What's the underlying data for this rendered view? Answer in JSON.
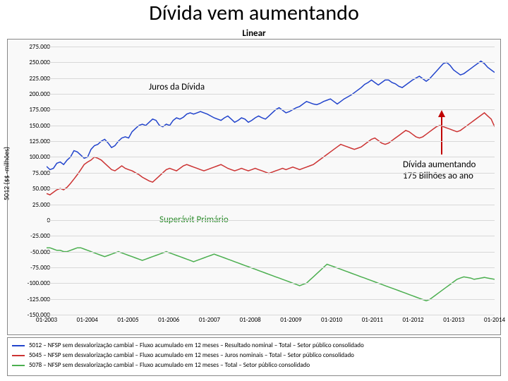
{
  "slide": {
    "title": "Dívida vem aumentando",
    "chart_title": "Linear"
  },
  "chart": {
    "type": "line",
    "background_color": "#f9f9f9",
    "grid_color": "#d8d8d8",
    "ylabel": "5012 ($$ -milhões)",
    "ylim": [
      -150000,
      275000
    ],
    "ytick_step": 25000,
    "yticks": [
      "275.000",
      "250.000",
      "225.000",
      "200.000",
      "175.000",
      "150.000",
      "125.000",
      "100.000",
      "75.000",
      "50.000",
      "25.000",
      "0",
      "-25.000",
      "-50.000",
      "-75.000",
      "-100.000",
      "-125.000",
      "-150.000"
    ],
    "xlabels": [
      "01-2003",
      "01-2004",
      "01-2005",
      "01-2006",
      "01-2007",
      "01-2008",
      "01-2009",
      "01-2010",
      "01-2011",
      "01-2012",
      "01-2013",
      "01-2014"
    ],
    "series": [
      {
        "name": "nominal",
        "color": "#2244cc",
        "width": 1.5,
        "data": [
          85,
          80,
          82,
          90,
          92,
          88,
          95,
          100,
          110,
          108,
          103,
          98,
          100,
          112,
          118,
          120,
          125,
          128,
          122,
          115,
          118,
          125,
          130,
          132,
          130,
          140,
          145,
          150,
          152,
          150,
          155,
          160,
          158,
          150,
          148,
          152,
          150,
          158,
          162,
          160,
          163,
          168,
          170,
          168,
          170,
          172,
          170,
          168,
          165,
          162,
          160,
          158,
          162,
          165,
          160,
          155,
          158,
          162,
          160,
          155,
          158,
          162,
          165,
          162,
          160,
          165,
          170,
          175,
          178,
          174,
          170,
          172,
          175,
          178,
          180,
          184,
          188,
          186,
          184,
          183,
          185,
          188,
          190,
          192,
          188,
          184,
          188,
          192,
          195,
          198,
          202,
          206,
          210,
          215,
          218,
          222,
          218,
          214,
          218,
          222,
          222,
          218,
          216,
          212,
          210,
          214,
          218,
          222,
          225,
          228,
          224,
          220,
          224,
          230,
          236,
          242,
          248,
          250,
          245,
          238,
          234,
          230,
          232,
          236,
          240,
          244,
          248,
          252,
          248,
          242,
          238,
          234
        ]
      },
      {
        "name": "juros",
        "color": "#cc3333",
        "width": 1.5,
        "data": [
          42,
          40,
          44,
          48,
          50,
          48,
          52,
          58,
          65,
          72,
          80,
          88,
          92,
          95,
          100,
          98,
          95,
          90,
          85,
          80,
          78,
          82,
          86,
          82,
          80,
          78,
          75,
          72,
          68,
          65,
          62,
          60,
          65,
          70,
          75,
          80,
          82,
          80,
          78,
          82,
          86,
          88,
          86,
          84,
          82,
          80,
          78,
          80,
          82,
          84,
          86,
          88,
          85,
          82,
          80,
          78,
          80,
          82,
          80,
          78,
          80,
          82,
          80,
          78,
          76,
          74,
          76,
          78,
          80,
          82,
          80,
          82,
          84,
          82,
          80,
          82,
          84,
          86,
          88,
          92,
          96,
          100,
          104,
          108,
          112,
          116,
          120,
          118,
          116,
          114,
          112,
          114,
          116,
          120,
          124,
          128,
          130,
          126,
          122,
          120,
          122,
          126,
          130,
          134,
          138,
          142,
          140,
          136,
          132,
          130,
          132,
          136,
          140,
          144,
          148,
          150,
          148,
          146,
          144,
          142,
          140,
          142,
          146,
          150,
          154,
          158,
          162,
          166,
          170,
          165,
          160,
          148
        ]
      },
      {
        "name": "primario",
        "color": "#4caf50",
        "width": 1.5,
        "data": [
          -44,
          -44,
          -46,
          -48,
          -48,
          -50,
          -50,
          -48,
          -46,
          -44,
          -44,
          -46,
          -48,
          -50,
          -52,
          -54,
          -56,
          -58,
          -56,
          -54,
          -52,
          -50,
          -52,
          -54,
          -56,
          -58,
          -60,
          -62,
          -64,
          -62,
          -60,
          -58,
          -56,
          -54,
          -52,
          -50,
          -52,
          -54,
          -56,
          -58,
          -60,
          -62,
          -64,
          -66,
          -64,
          -62,
          -60,
          -58,
          -56,
          -54,
          -56,
          -58,
          -60,
          -62,
          -64,
          -66,
          -68,
          -70,
          -72,
          -74,
          -76,
          -78,
          -80,
          -82,
          -84,
          -86,
          -88,
          -90,
          -92,
          -94,
          -96,
          -98,
          -100,
          -102,
          -104,
          -102,
          -100,
          -95,
          -90,
          -85,
          -80,
          -75,
          -70,
          -72,
          -74,
          -76,
          -78,
          -80,
          -82,
          -84,
          -86,
          -88,
          -90,
          -92,
          -94,
          -96,
          -98,
          -100,
          -102,
          -104,
          -106,
          -108,
          -110,
          -112,
          -114,
          -116,
          -118,
          -120,
          -122,
          -124,
          -126,
          -128,
          -126,
          -122,
          -118,
          -114,
          -110,
          -106,
          -102,
          -98,
          -94,
          -92,
          -90,
          -91,
          -92,
          -94,
          -93,
          -92,
          -91,
          -92,
          -93,
          -94
        ]
      }
    ],
    "annotations": {
      "juros": "Juros da Dívida",
      "superavit": "Superávit Primário",
      "divida": "Dívida aumentando\n175 Bilhões ao ano"
    }
  },
  "legend": {
    "rows": [
      {
        "color": "#2244cc",
        "text": "5012 – NFSP sem desvalorização cambial – Fluxo acumulado em 12 meses – Resultado nominal – Total – Setor público consolidado"
      },
      {
        "color": "#cc3333",
        "text": "5045 – NFSP sem desvalorização cambial – Fluxo acumulado em 12 meses – Juros nominais – Total – Setor público consolidado"
      },
      {
        "color": "#4caf50",
        "text": "5078 – NFSP sem desvalorização cambial – Fluxo acumulado em 12 meses – Total – Setor público consolidado"
      }
    ]
  }
}
